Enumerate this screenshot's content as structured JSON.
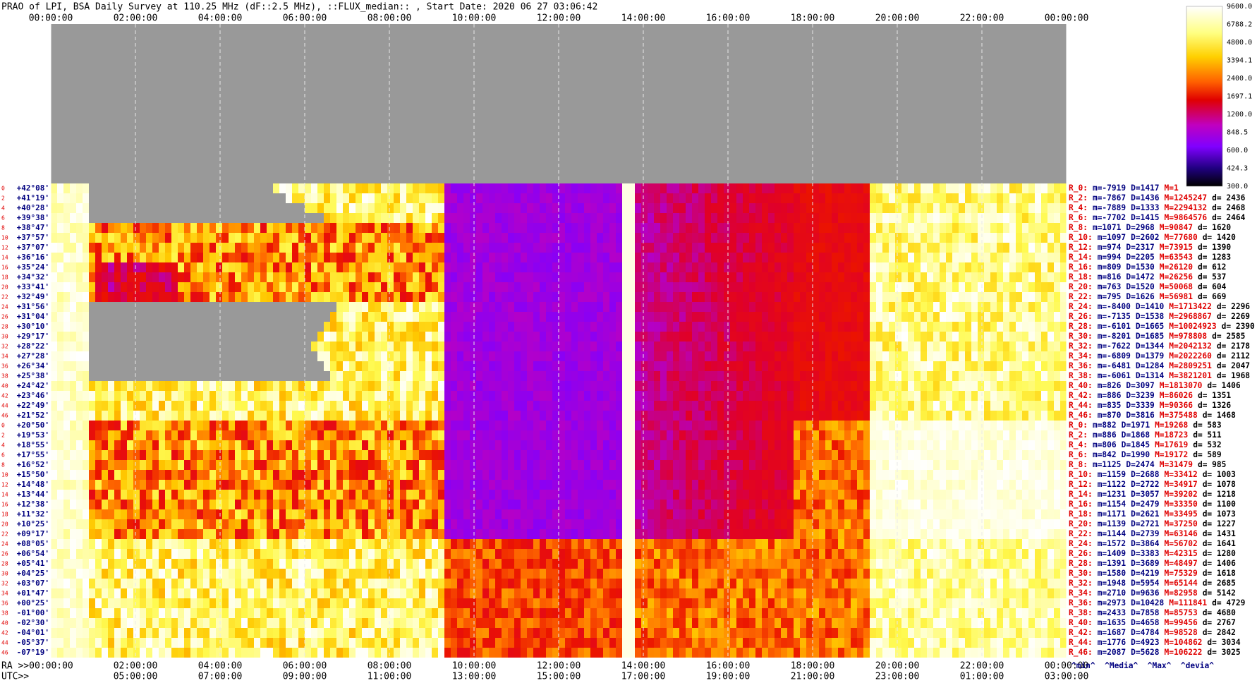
{
  "title": "PRAO of LPI, BSA Daily Survey at 110.25 MHz (dF::2.5 MHz), ::FLUX_median:: , Start Date: 2020 06 27 03:06:42",
  "top_time_labels": [
    "00:00:00",
    "02:00:00",
    "04:00:00",
    "06:00:00",
    "08:00:00",
    "10:00:00",
    "12:00:00",
    "14:00:00",
    "16:00:00",
    "18:00:00",
    "20:00:00",
    "22:00:00",
    "00:00:00"
  ],
  "bottom_ra_labels": [
    "RA >>00:00:00",
    "02:00:00",
    "04:00:00",
    "06:00:00",
    "08:00:00",
    "10:00:00",
    "12:00:00",
    "14:00:00",
    "16:00:00",
    "18:00:00",
    "20:00:00",
    "22:00:00",
    "00:00:00"
  ],
  "utc_prefix": "UTC>>",
  "utc_labels": [
    "05:00:00",
    "07:00:00",
    "09:00:00",
    "11:00:00",
    "13:00:00",
    "15:00:00",
    "17:00:00",
    "19:00:00",
    "21:00:00",
    "23:00:00",
    "01:00:00",
    "03:00:00"
  ],
  "colorbar_labels": [
    "9600.0",
    "6788.2",
    "4800.0",
    "3394.1",
    "2400.0",
    "1697.1",
    "1200.0",
    "848.5",
    "600.0",
    "424.3",
    "300.0"
  ],
  "row_groups": [
    {
      "indices": [
        "0",
        "2",
        "4",
        "6",
        "8",
        "10",
        "12",
        "14",
        "16",
        "18",
        "20",
        "22",
        "24",
        "26",
        "28",
        "30",
        "32",
        "34",
        "36",
        "38",
        "40",
        "42",
        "44",
        "46"
      ],
      "declinations": [
        "+42°08'",
        "+41°19'",
        "+40°28'",
        "+39°38'",
        "+38°47'",
        "+37°57'",
        "+37°07'",
        "+36°16'",
        "+35°24'",
        "+34°32'",
        "+33°41'",
        "+32°49'",
        "+31°56'",
        "+31°04'",
        "+30°10'",
        "+29°17'",
        "+28°22'",
        "+27°28'",
        "+26°34'",
        "+25°38'",
        "+24°42'",
        "+23°46'",
        "+22°49'",
        "+21°52'"
      ],
      "stats": [
        {
          "label": "R_0:",
          "m": "m=-7919",
          "D": "D=1417",
          "M": "M=1"
        },
        {
          "label": "R_2:",
          "m": "m=-7867",
          "D": "D=1436",
          "M": "M=1245247",
          "d": "d= 2436"
        },
        {
          "label": "R_4:",
          "m": "m=-7889",
          "D": "D=1333",
          "M": "M=2294132",
          "d": "d= 2468"
        },
        {
          "label": "R_6:",
          "m": "m=-7702",
          "D": "D=1415",
          "M": "M=9864576",
          "d": "d= 2464"
        },
        {
          "label": "R_8:",
          "m": "m=1071",
          "D": "D=2968",
          "M": "M=90847",
          "d": "d= 1620"
        },
        {
          "label": "R_10:",
          "m": "m=1097",
          "D": "D=2602",
          "M": "M=77680",
          "d": "d= 1420"
        },
        {
          "label": "R_12:",
          "m": "m=974",
          "D": "D=2317",
          "M": "M=73915",
          "d": "d= 1390"
        },
        {
          "label": "R_14:",
          "m": "m=994",
          "D": "D=2205",
          "M": "M=63543",
          "d": "d= 1283"
        },
        {
          "label": "R_16:",
          "m": "m=809",
          "D": "D=1530",
          "M": "M=26120",
          "d": "d= 612"
        },
        {
          "label": "R_18:",
          "m": "m=816",
          "D": "D=1472",
          "M": "M=26256",
          "d": "d= 537"
        },
        {
          "label": "R_20:",
          "m": "m=763",
          "D": "D=1520",
          "M": "M=50068",
          "d": "d= 604"
        },
        {
          "label": "R_22:",
          "m": "m=795",
          "D": "D=1626",
          "M": "M=56981",
          "d": "d= 669"
        },
        {
          "label": "R_24:",
          "m": "m=-8400",
          "D": "D=1410",
          "M": "M=1713422",
          "d": "d= 2296"
        },
        {
          "label": "R_26:",
          "m": "m=-7135",
          "D": "D=1538",
          "M": "M=2968867",
          "d": "d= 2269"
        },
        {
          "label": "R_28:",
          "m": "m=-6101",
          "D": "D=1665",
          "M": "M=10024923",
          "d": "d= 2390"
        },
        {
          "label": "R_30:",
          "m": "m=-8201",
          "D": "D=1685",
          "M": "M=978808",
          "d": "d= 2585"
        },
        {
          "label": "R_32:",
          "m": "m=-7622",
          "D": "D=1344",
          "M": "M=2042132",
          "d": "d= 2178"
        },
        {
          "label": "R_34:",
          "m": "m=-6809",
          "D": "D=1379",
          "M": "M=2022260",
          "d": "d= 2112"
        },
        {
          "label": "R_36:",
          "m": "m=-6481",
          "D": "D=1284",
          "M": "M=2809251",
          "d": "d= 2047"
        },
        {
          "label": "R_38:",
          "m": "m=-6061",
          "D": "D=1314",
          "M": "M=3821201",
          "d": "d= 1968"
        },
        {
          "label": "R_40:",
          "m": "m=826",
          "D": "D=3097",
          "M": "M=1813070",
          "d": "d= 1406"
        },
        {
          "label": "R_42:",
          "m": "m=886",
          "D": "D=3239",
          "M": "M=86026",
          "d": "d= 1351"
        },
        {
          "label": "R_44:",
          "m": "m=835",
          "D": "D=3339",
          "M": "M=90366",
          "d": "d= 1326"
        },
        {
          "label": "R_46:",
          "m": "m=870",
          "D": "D=3816",
          "M": "M=375488",
          "d": "d= 1468"
        }
      ]
    },
    {
      "indices": [
        "0",
        "2",
        "4",
        "6",
        "8",
        "10",
        "12",
        "14",
        "16",
        "18",
        "20",
        "22",
        "24",
        "26",
        "28",
        "30",
        "32",
        "34",
        "36",
        "38",
        "40",
        "42",
        "44",
        "46"
      ],
      "declinations": [
        "+20°50'",
        "+19°53'",
        "+18°55'",
        "+17°55'",
        "+16°52'",
        "+15°50'",
        "+14°48'",
        "+13°44'",
        "+12°38'",
        "+11°32'",
        "+10°25'",
        "+09°17'",
        "+08°05'",
        "+06°54'",
        "+05°41'",
        "+04°25'",
        "+03°07'",
        "+01°47'",
        "+00°25'",
        "-01°00'",
        "-02°30'",
        "-04°01'",
        "-05°37'",
        "-07°19'"
      ],
      "stats": [
        {
          "label": "R_0:",
          "m": "m=882",
          "D": "D=1971",
          "M": "M=19268",
          "d": "d= 583"
        },
        {
          "label": "R_2:",
          "m": "m=886",
          "D": "D=1868",
          "M": "M=18723",
          "d": "d= 511"
        },
        {
          "label": "R_4:",
          "m": "m=806",
          "D": "D=1845",
          "M": "M=17619",
          "d": "d= 532"
        },
        {
          "label": "R_6:",
          "m": "m=842",
          "D": "D=1990",
          "M": "M=19172",
          "d": "d= 589"
        },
        {
          "label": "R_8:",
          "m": "m=1125",
          "D": "D=2474",
          "M": "M=31479",
          "d": "d= 985"
        },
        {
          "label": "R_10:",
          "m": "m=1159",
          "D": "D=2688",
          "M": "M=33412",
          "d": "d= 1003"
        },
        {
          "label": "R_12:",
          "m": "m=1122",
          "D": "D=2722",
          "M": "M=34917",
          "d": "d= 1078"
        },
        {
          "label": "R_14:",
          "m": "m=1231",
          "D": "D=3057",
          "M": "M=39202",
          "d": "d= 1218"
        },
        {
          "label": "R_16:",
          "m": "m=1154",
          "D": "D=2479",
          "M": "M=33350",
          "d": "d= 1100"
        },
        {
          "label": "R_18:",
          "m": "m=1171",
          "D": "D=2621",
          "M": "M=33495",
          "d": "d= 1073"
        },
        {
          "label": "R_20:",
          "m": "m=1139",
          "D": "D=2721",
          "M": "M=37250",
          "d": "d= 1227"
        },
        {
          "label": "R_22:",
          "m": "m=1144",
          "D": "D=2739",
          "M": "M=63146",
          "d": "d= 1431"
        },
        {
          "label": "R_24:",
          "m": "m=1572",
          "D": "D=3864",
          "M": "M=56702",
          "d": "d= 1641"
        },
        {
          "label": "R_26:",
          "m": "m=1409",
          "D": "D=3383",
          "M": "M=42315",
          "d": "d= 1280"
        },
        {
          "label": "R_28:",
          "m": "m=1391",
          "D": "D=3689",
          "M": "M=48497",
          "d": "d= 1406"
        },
        {
          "label": "R_30:",
          "m": "m=1580",
          "D": "D=4219",
          "M": "M=75329",
          "d": "d= 1618"
        },
        {
          "label": "R_32:",
          "m": "m=1948",
          "D": "D=5954",
          "M": "M=65144",
          "d": "d= 2685"
        },
        {
          "label": "R_34:",
          "m": "m=2710",
          "D": "D=9636",
          "M": "M=82958",
          "d": "d= 5142"
        },
        {
          "label": "R_36:",
          "m": "m=2973",
          "D": "D=10428",
          "M": "M=111841",
          "d": "d= 4729"
        },
        {
          "label": "R_38:",
          "m": "m=2433",
          "D": "D=7858",
          "M": "M=85753",
          "d": "d= 4680"
        },
        {
          "label": "R_40:",
          "m": "m=1635",
          "D": "D=4658",
          "M": "M=99456",
          "d": "d= 2767"
        },
        {
          "label": "R_42:",
          "m": "m=1687",
          "D": "D=4784",
          "M": "M=98528",
          "d": "d= 2842"
        },
        {
          "label": "R_44:",
          "m": "m=1776",
          "D": "D=4923",
          "M": "M=104862",
          "d": "d= 3034"
        },
        {
          "label": "R_46:",
          "m": "m=2087",
          "D": "D=5628",
          "M": "M=106222",
          "d": "d= 3025"
        }
      ]
    }
  ],
  "stats_footer": "^min^  ^Media^  ^Max^  ^devia^"
}
